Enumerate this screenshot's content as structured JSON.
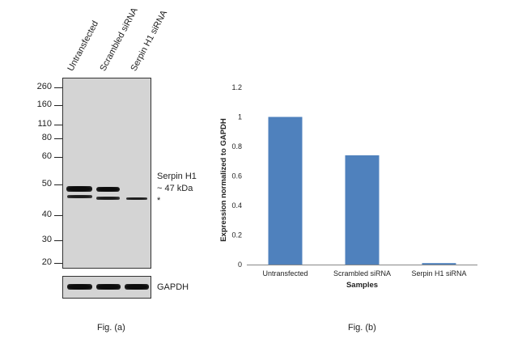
{
  "western_blot": {
    "lane_labels": [
      "Untransfected",
      "Scrambled siRNA",
      "Serpin H1 siRNA"
    ],
    "markers": [
      "260",
      "160",
      "110",
      "80",
      "60",
      "50",
      "40",
      "30",
      "20"
    ],
    "band_label": "Serpin H1",
    "band_size": "~ 47 kDa",
    "nonspecific_mark": "*",
    "loading_control": "GAPDH",
    "caption": "Fig. (a)"
  },
  "chart_data": {
    "type": "bar",
    "categories": [
      "Untransfected",
      "Scrambled siRNA",
      "Serpin H1 siRNA"
    ],
    "values": [
      1.0,
      0.74,
      0.01
    ],
    "xlabel": "Samples",
    "ylabel": "Expression normalized to GAPDH",
    "ylim": [
      0,
      1.2
    ],
    "yticks": [
      "0",
      "0.2",
      "0.4",
      "0.6",
      "0.8",
      "1",
      "1.2"
    ],
    "bar_color": "#4f81bd",
    "grid": false,
    "caption": "Fig. (b)"
  }
}
